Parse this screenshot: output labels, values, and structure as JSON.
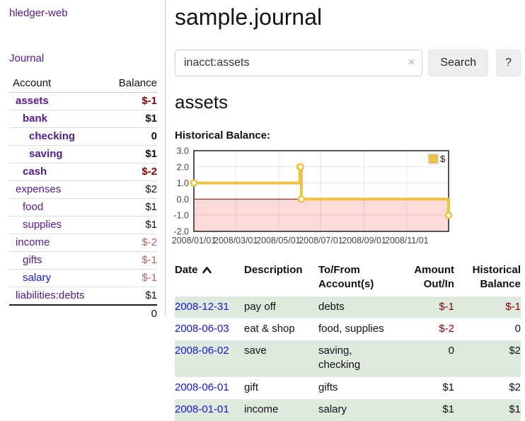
{
  "app": {
    "title": "hledger-web"
  },
  "nav": {
    "journal": "Journal"
  },
  "accounts_panel": {
    "headers": {
      "account": "Account",
      "balance": "Balance"
    },
    "rows": [
      {
        "name": "assets",
        "balance": "$-1"
      },
      {
        "name": "bank",
        "balance": "$1"
      },
      {
        "name": "checking",
        "balance": "0"
      },
      {
        "name": "saving",
        "balance": "$1"
      },
      {
        "name": "cash",
        "balance": "$-2"
      },
      {
        "name": "expenses",
        "balance": "$2"
      },
      {
        "name": "food",
        "balance": "$1"
      },
      {
        "name": "supplies",
        "balance": "$1"
      },
      {
        "name": "income",
        "balance": "$-2"
      },
      {
        "name": "gifts",
        "balance": "$-1"
      },
      {
        "name": "salary",
        "balance": "$-1"
      },
      {
        "name": "liabilities:debts",
        "balance": "$1"
      }
    ],
    "total": "0"
  },
  "header": {
    "title": "sample.journal"
  },
  "search": {
    "query": "inacct:assets",
    "clear_icon": "×",
    "button": "Search",
    "help": "?"
  },
  "account_page": {
    "heading": "assets",
    "chart_title": "Historical Balance:"
  },
  "chart_data": {
    "type": "line",
    "title": "Historical Balance:",
    "step": true,
    "series": [
      {
        "name": "$",
        "points": [
          [
            "2008-01-01",
            1
          ],
          [
            "2008-06-01",
            2
          ],
          [
            "2008-06-02",
            2
          ],
          [
            "2008-06-03",
            0
          ],
          [
            "2008-12-31",
            -1
          ]
        ]
      }
    ],
    "xlim": [
      "2008-01-01",
      "2008-12-31"
    ],
    "ylim": [
      -2,
      3
    ],
    "yticks": [
      3.0,
      2.0,
      1.0,
      0.0,
      -1.0,
      -2.0
    ],
    "xticks": [
      {
        "date": "2008-01-01",
        "label": "2008/01/01"
      },
      {
        "date": "2008-03-01",
        "label": "2008/03/01"
      },
      {
        "date": "2008-05-01",
        "label": "2008/05/01"
      },
      {
        "date": "2008-07-01",
        "label": "2008/07/01"
      },
      {
        "date": "2008-09-01",
        "label": "2008/09/01"
      },
      {
        "date": "2008-11-01",
        "label": "2008/11/01"
      }
    ],
    "legend": {
      "label": "$",
      "position": "top-right"
    },
    "grid": true,
    "negative_region_shaded": true,
    "colors": {
      "line": "#edc240",
      "negative_region": "#fcdada",
      "zero_line": "#8b0000",
      "border": "#545454"
    }
  },
  "register": {
    "headers": {
      "date": "Date",
      "description": "Description",
      "accounts": "To/From\nAccount(s)",
      "amount": "Amount\nOut/In",
      "balance": "Historical\nBalance"
    },
    "rows": [
      {
        "date": "2008-12-31",
        "description": "pay off",
        "accounts": "debts",
        "amount": "$-1",
        "balance": "$-1"
      },
      {
        "date": "2008-06-03",
        "description": "eat & shop",
        "accounts": "food, supplies",
        "amount": "$-2",
        "balance": "0"
      },
      {
        "date": "2008-06-02",
        "description": "save",
        "accounts": "saving,\nchecking",
        "amount": "0",
        "balance": "$2"
      },
      {
        "date": "2008-06-01",
        "description": "gift",
        "accounts": "gifts",
        "amount": "$1",
        "balance": "$2"
      },
      {
        "date": "2008-01-01",
        "description": "income",
        "accounts": "salary",
        "amount": "$1",
        "balance": "$1"
      }
    ]
  },
  "colors": {
    "link_purple": "#551a8b",
    "link_blue": "#1414dd",
    "negative_strong": "#8b0000",
    "negative_soft": "#b06464",
    "row_stripe_green": "#deeadd",
    "chart_line": "#edc240",
    "chart_negative_pink": "#fcdada",
    "chart_border": "#545454"
  }
}
